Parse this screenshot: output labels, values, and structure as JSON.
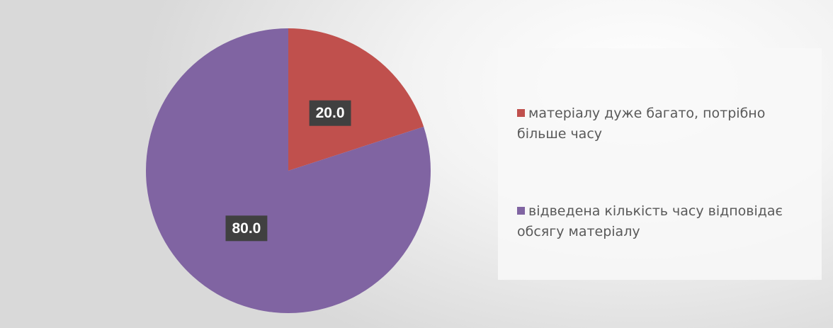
{
  "chart_data": {
    "type": "pie",
    "categories": [
      "матеріалу дуже багато, потрібно більше часу",
      "відведена кількість часу відповідає обсягу матеріалу"
    ],
    "values": [
      20,
      80
    ],
    "value_labels": [
      "20.0",
      "80.0"
    ],
    "colors": [
      "#c0504d",
      "#8064a2"
    ],
    "legend": "right"
  }
}
